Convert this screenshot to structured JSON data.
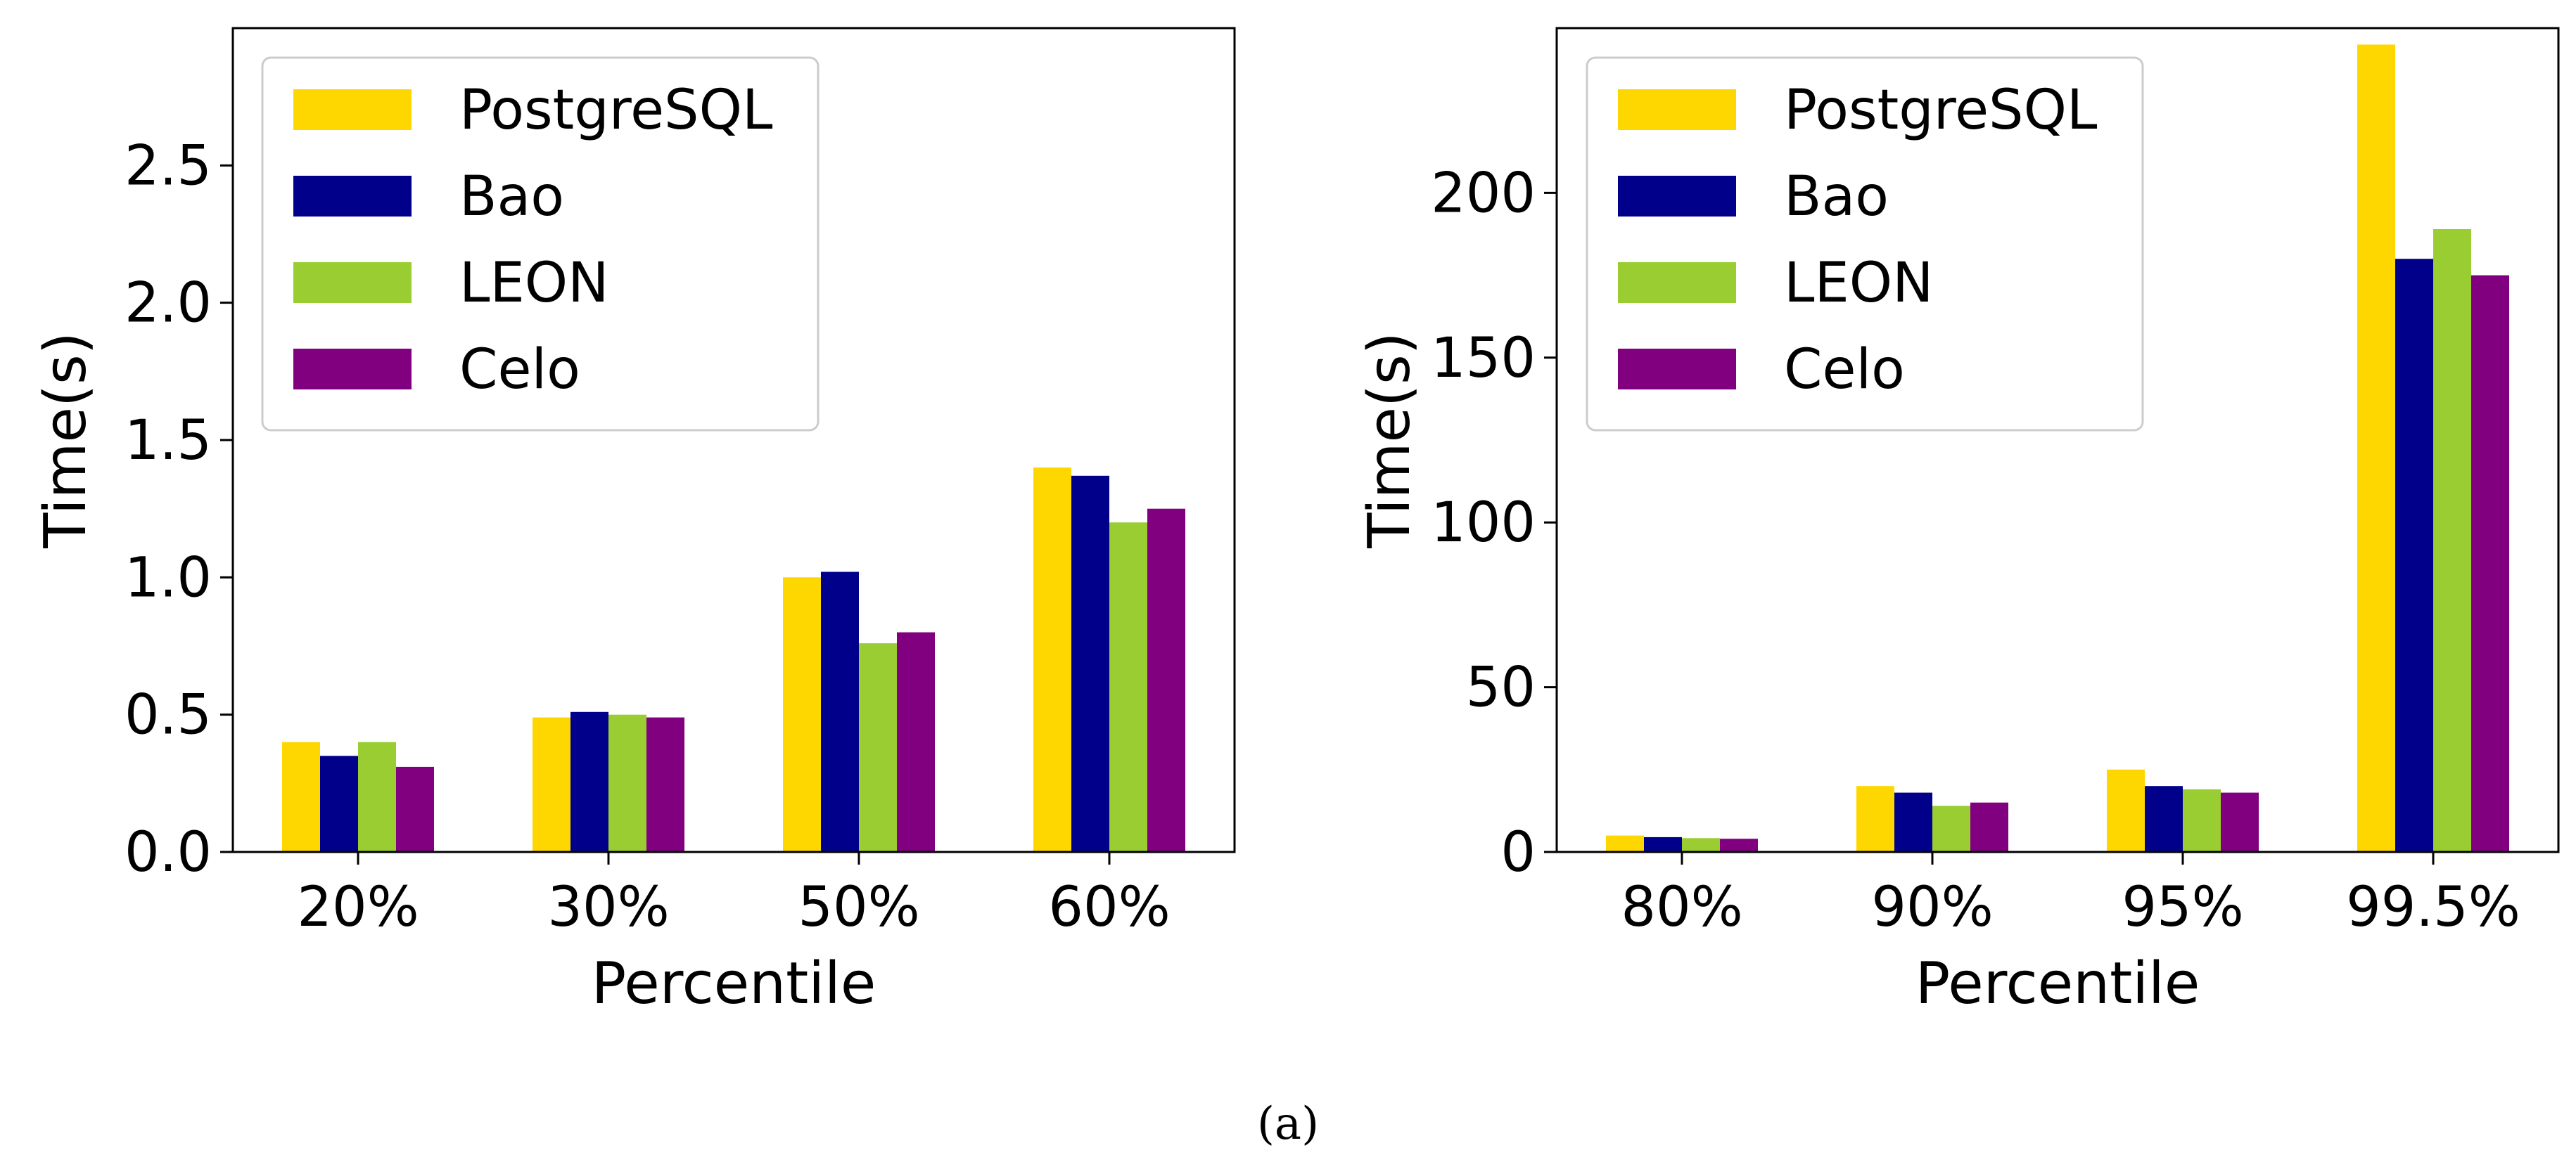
{
  "chart_data": [
    {
      "type": "bar",
      "categories": [
        "20%",
        "30%",
        "50%",
        "60%"
      ],
      "series": [
        {
          "name": "PostgreSQL",
          "color": "#FFD700",
          "values": [
            0.4,
            0.49,
            1.0,
            1.4
          ]
        },
        {
          "name": "Bao",
          "color": "#00008B",
          "values": [
            0.35,
            0.51,
            1.02,
            1.37
          ]
        },
        {
          "name": "LEON",
          "color": "#9ACD32",
          "values": [
            0.4,
            0.5,
            0.76,
            1.2
          ]
        },
        {
          "name": "Celo",
          "color": "#800080",
          "values": [
            0.31,
            0.49,
            0.8,
            1.25
          ]
        }
      ],
      "xlabel": "Percentile",
      "ylabel": "Time(s)",
      "ylim": [
        0,
        3.0
      ],
      "yticks": [
        "0.0",
        "0.5",
        "1.0",
        "1.5",
        "2.0",
        "2.5"
      ],
      "ytick_values": [
        0,
        0.5,
        1.0,
        1.5,
        2.0,
        2.5
      ],
      "legend_position": "top-left",
      "grid": false
    },
    {
      "type": "bar",
      "categories": [
        "80%",
        "90%",
        "95%",
        "99.5%"
      ],
      "series": [
        {
          "name": "PostgreSQL",
          "color": "#FFD700",
          "values": [
            5,
            20,
            25,
            245
          ]
        },
        {
          "name": "Bao",
          "color": "#00008B",
          "values": [
            4.5,
            18,
            20,
            180
          ]
        },
        {
          "name": "LEON",
          "color": "#9ACD32",
          "values": [
            4.2,
            14,
            19,
            189
          ]
        },
        {
          "name": "Celo",
          "color": "#800080",
          "values": [
            4.0,
            15,
            18,
            175
          ]
        }
      ],
      "xlabel": "Percentile",
      "ylabel": "Time(s)",
      "ylim": [
        0,
        250
      ],
      "yticks": [
        "0",
        "50",
        "100",
        "150",
        "200"
      ],
      "ytick_values": [
        0,
        50,
        100,
        150,
        200
      ],
      "legend_position": "top-left",
      "grid": false
    }
  ],
  "caption": "(a)"
}
